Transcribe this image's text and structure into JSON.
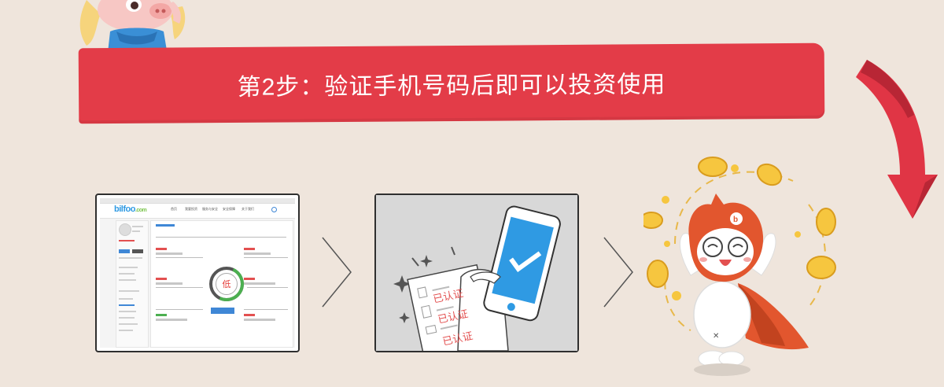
{
  "banner": {
    "title": "第2步：验证手机号码后即可以投资使用"
  },
  "site_mock": {
    "logo": "bilfoo",
    "logo_com": ".com",
    "risk_level": "低",
    "nav": [
      "首页",
      "我要投资",
      "服务与安全",
      "安全保障",
      "关于我们"
    ]
  },
  "phone_mock": {
    "cert_labels": [
      "已认证",
      "已认证",
      "已认证"
    ]
  },
  "colors": {
    "background": "#efe5dc",
    "banner": "#e33c48",
    "accent_blue": "#2f9ae3",
    "coin": "#f6c63f",
    "mascot_orange": "#e2562e"
  },
  "icons": {
    "left_mascot": "pig-mascot-icon",
    "right_mascot": "cat-hero-mascot-icon",
    "flow_arrow": "chevron-right-icon",
    "curved_arrow": "curved-red-arrow-icon",
    "coin": "yuan-coin-icon",
    "phone": "phone-check-icon"
  }
}
